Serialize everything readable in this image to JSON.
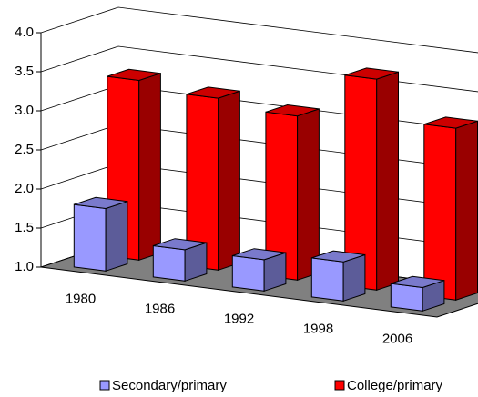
{
  "chart_data": {
    "type": "bar3d",
    "categories": [
      "1980",
      "1986",
      "1992",
      "1998",
      "2006"
    ],
    "series": [
      {
        "name": "Secondary/primary",
        "color": "#9999ff",
        "values": [
          1.8,
          1.4,
          1.4,
          1.5,
          1.3
        ]
      },
      {
        "name": "College/primary",
        "color": "#ff0000",
        "values": [
          3.3,
          3.2,
          3.1,
          3.7,
          3.2
        ]
      }
    ],
    "ylim": [
      1.0,
      4.0
    ],
    "yticks": [
      {
        "value": 1,
        "label": "1.0"
      },
      1.5,
      {
        "value": 2,
        "label": "2.0"
      },
      2.5,
      {
        "value": 3,
        "label": "3.0"
      },
      3.5,
      {
        "value": 4,
        "label": "4.0"
      }
    ],
    "grid": true,
    "legend": "bottom"
  }
}
